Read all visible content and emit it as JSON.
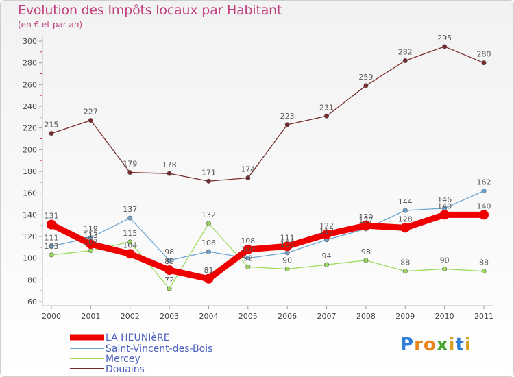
{
  "title": "Evolution des Impôts locaux par Habitant",
  "subtitle": "(en € et par an)",
  "logo_text": "Proxiti",
  "chart_data": {
    "type": "line",
    "x": [
      "2000",
      "2001",
      "2002",
      "2003",
      "2004",
      "2005",
      "2006",
      "2007",
      "2008",
      "2009",
      "2010",
      "2011"
    ],
    "ylim": [
      60,
      300
    ],
    "yticks": [
      60,
      80,
      100,
      120,
      140,
      160,
      180,
      200,
      220,
      240,
      260,
      280,
      300
    ],
    "xlabel": "",
    "ylabel": "",
    "grid": false,
    "legend_position": "bottom-left",
    "series": [
      {
        "name": "LA HEUNIèRE",
        "color": "#ee0000",
        "values": [
          131,
          113,
          104,
          89,
          81,
          108,
          111,
          122,
          130,
          128,
          140,
          140
        ]
      },
      {
        "name": "Saint-Vincent-des-Bois",
        "color": "#6ea4d0",
        "values": [
          111,
          119,
          137,
          98,
          106,
          100,
          105,
          117,
          127,
          144,
          146,
          162
        ]
      },
      {
        "name": "Mercey",
        "color": "#9ddc5e",
        "values": [
          103,
          107,
          115,
          72,
          132,
          92,
          90,
          94,
          98,
          88,
          90,
          88
        ]
      },
      {
        "name": "Douains",
        "color": "#7a2a2a",
        "values": [
          215,
          227,
          179,
          178,
          171,
          174,
          223,
          231,
          259,
          282,
          295,
          280
        ]
      }
    ]
  }
}
